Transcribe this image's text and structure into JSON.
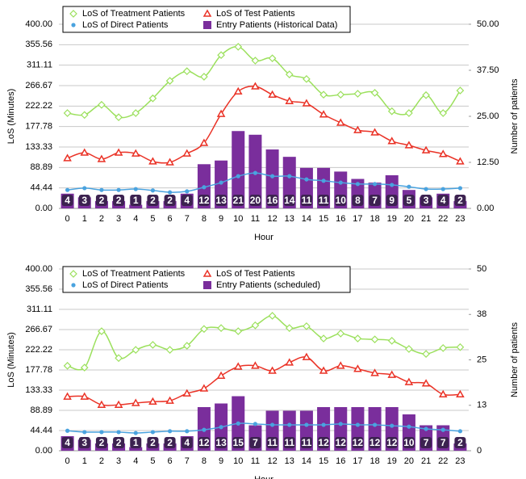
{
  "chart_data": [
    {
      "type": "combo",
      "x_label": "Hour",
      "y_label": "LoS (Minutes)",
      "y2_label": "Number of patients",
      "grid": true,
      "categories": [
        "0",
        "1",
        "2",
        "3",
        "4",
        "5",
        "6",
        "7",
        "8",
        "9",
        "10",
        "11",
        "12",
        "13",
        "14",
        "15",
        "16",
        "17",
        "18",
        "19",
        "20",
        "21",
        "22",
        "23"
      ],
      "ylim": [
        0,
        400
      ],
      "yticks": [
        {
          "value": 0,
          "label": "0.00"
        },
        44.44,
        88.89,
        133.33,
        177.78,
        222.22,
        266.67,
        311.11,
        355.56,
        {
          "value": 400,
          "label": "400.00"
        }
      ],
      "y2lim": [
        0,
        50
      ],
      "y2ticks": [
        {
          "value": 0,
          "label": "0.00"
        },
        {
          "value": 12.5,
          "label": "12.50"
        },
        {
          "value": 25,
          "label": "25.00"
        },
        {
          "value": 37.5,
          "label": "37.50"
        },
        {
          "value": 50,
          "label": "50.00"
        }
      ],
      "series": [
        {
          "name": "LoS of Treatment Patients",
          "kind": "line",
          "marker": "diamond",
          "color": "#9be05c",
          "values": [
            207,
            203,
            225,
            198,
            207,
            239,
            277,
            298,
            286,
            333,
            351,
            321,
            326,
            291,
            281,
            247,
            247,
            249,
            251,
            211,
            207,
            246,
            207,
            256
          ]
        },
        {
          "name": "LoS of Test Patients",
          "kind": "line",
          "marker": "triangle",
          "color": "#ea3226",
          "values": [
            109,
            121,
            107,
            121,
            119,
            102,
            100,
            119,
            142,
            205,
            254,
            265,
            247,
            233,
            228,
            204,
            186,
            170,
            165,
            146,
            137,
            126,
            118,
            102
          ]
        },
        {
          "name": "LoS of Direct Patients",
          "kind": "line",
          "marker": "circle",
          "color": "#4aa3df",
          "values": [
            40,
            44,
            40,
            40,
            42,
            39,
            35,
            37,
            46,
            56,
            70,
            77,
            70,
            70,
            63,
            60,
            56,
            53,
            53,
            51,
            47,
            42,
            42,
            44
          ]
        },
        {
          "name": "Entry Patients (Historical Data)",
          "kind": "bar",
          "axis": "y2",
          "color": "#7a2e9c",
          "values": [
            4,
            3,
            2,
            2,
            1,
            2,
            2,
            4,
            12,
            13,
            21,
            20,
            16,
            14,
            11,
            11,
            10,
            8,
            7,
            9,
            5,
            3,
            4,
            2
          ]
        }
      ]
    },
    {
      "type": "combo",
      "x_label": "Hour",
      "y_label": "LoS (Minutes)",
      "y2_label": "Number of patients",
      "grid": true,
      "categories": [
        "0",
        "1",
        "2",
        "3",
        "4",
        "5",
        "6",
        "7",
        "8",
        "9",
        "10",
        "11",
        "12",
        "13",
        "14",
        "15",
        "16",
        "17",
        "18",
        "19",
        "20",
        "21",
        "22",
        "23"
      ],
      "ylim": [
        0,
        400
      ],
      "yticks": [
        {
          "value": 0,
          "label": "0.00"
        },
        44.44,
        88.89,
        133.33,
        177.78,
        222.22,
        266.67,
        311.11,
        355.56,
        {
          "value": 400,
          "label": "400.00"
        }
      ],
      "y2lim": [
        0,
        50
      ],
      "y2ticks": [
        0,
        {
          "value": 12.5,
          "label": "13"
        },
        25,
        {
          "value": 37.5,
          "label": "38"
        },
        50
      ],
      "series": [
        {
          "name": "LoS of Treatment Patients",
          "kind": "line",
          "marker": "diamond",
          "color": "#9be05c",
          "values": [
            187,
            183,
            263,
            204,
            222,
            233,
            222,
            231,
            268,
            270,
            263,
            276,
            297,
            270,
            274,
            247,
            258,
            247,
            245,
            242,
            224,
            213,
            226,
            228
          ]
        },
        {
          "name": "LoS of Test Patients",
          "kind": "line",
          "marker": "triangle",
          "color": "#ea3226",
          "values": [
            119,
            119,
            101,
            101,
            105,
            108,
            110,
            126,
            137,
            165,
            185,
            187,
            176,
            194,
            206,
            176,
            187,
            180,
            171,
            167,
            151,
            148,
            124,
            124
          ]
        },
        {
          "name": "LoS of Direct Patients",
          "kind": "line",
          "marker": "circle",
          "color": "#4aa3df",
          "values": [
            44,
            41,
            41,
            41,
            39,
            41,
            43,
            43,
            46,
            52,
            60,
            59,
            57,
            57,
            57,
            57,
            59,
            57,
            57,
            55,
            53,
            48,
            46,
            43
          ]
        },
        {
          "name": "Entry Patients (scheduled)",
          "kind": "bar",
          "axis": "y2",
          "color": "#7a2e9c",
          "values": [
            4,
            3,
            2,
            2,
            1,
            2,
            2,
            4,
            12,
            13,
            15,
            7,
            11,
            11,
            11,
            12,
            12,
            12,
            12,
            12,
            10,
            7,
            7,
            2
          ]
        }
      ]
    }
  ]
}
